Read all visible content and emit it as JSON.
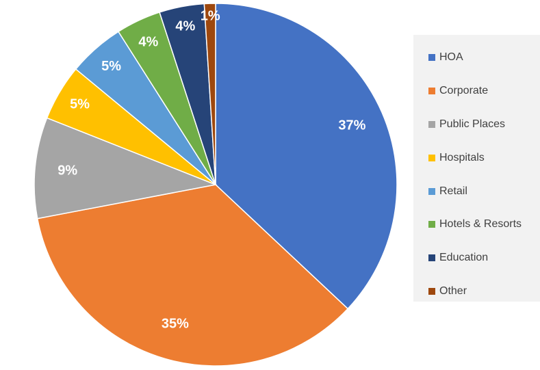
{
  "chart_data": {
    "type": "pie",
    "title": "",
    "categories": [
      "HOA",
      "Corporate",
      "Public Places",
      "Hospitals",
      "Retail",
      "Hotels & Resorts",
      "Education",
      "Other"
    ],
    "values": [
      37,
      35,
      9,
      5,
      5,
      4,
      4,
      1
    ],
    "labels": [
      "37%",
      "35%",
      "9%",
      "5%",
      "5%",
      "4%",
      "4%",
      "1%"
    ],
    "colors": [
      "#4472C4",
      "#ED7D31",
      "#A5A5A5",
      "#FFC000",
      "#5B9BD5",
      "#70AD47",
      "#264478",
      "#9E480E"
    ],
    "legend_position": "right",
    "start_angle": "12 o'clock, clockwise"
  }
}
